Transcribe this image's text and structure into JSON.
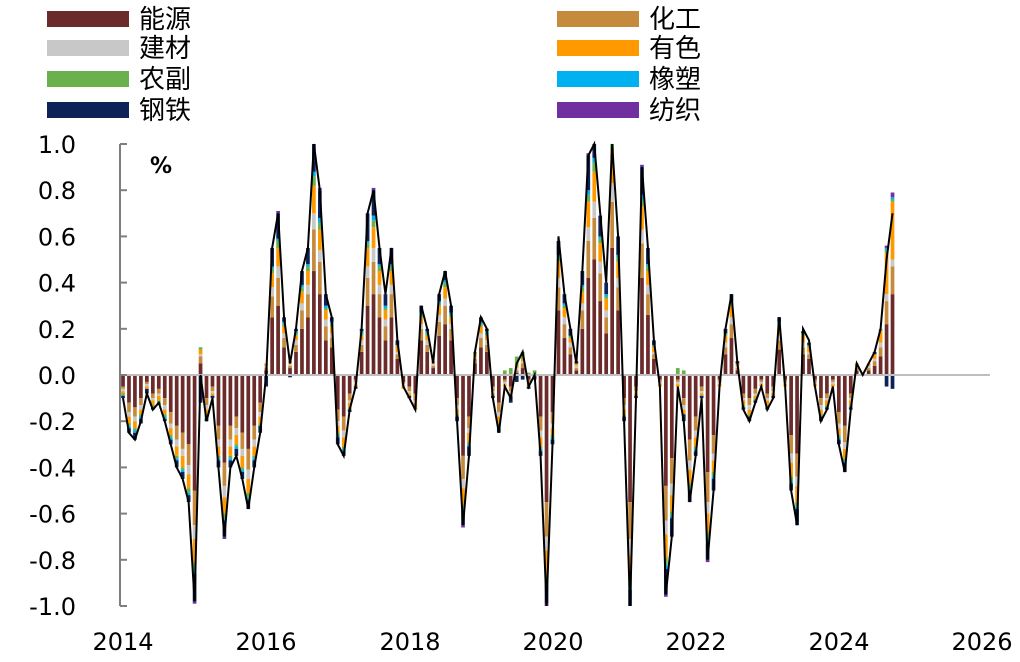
{
  "chart_data": {
    "type": "bar+line",
    "title": "",
    "unit": "%",
    "ylim": [
      -1.0,
      1.0
    ],
    "yticks": [
      "1.0",
      "0.8",
      "0.6",
      "0.4",
      "0.2",
      "0.0",
      "-0.2",
      "-0.4",
      "-0.6",
      "-0.8",
      "-1.0"
    ],
    "xticks": [
      "2014",
      "2016",
      "2018",
      "2020",
      "2022",
      "2024",
      "2026"
    ],
    "x_start": "2014-01",
    "frequency": "monthly",
    "legend": [
      {
        "name": "能源",
        "color": "#6b2b2b"
      },
      {
        "name": "化工",
        "color": "#c68a3c"
      },
      {
        "name": "建材",
        "color": "#c8c8c8"
      },
      {
        "name": "有色",
        "color": "#ff9900"
      },
      {
        "name": "农副",
        "color": "#6ab04c"
      },
      {
        "name": "橡塑",
        "color": "#00b0f0"
      },
      {
        "name": "钢铁",
        "color": "#0d2357"
      },
      {
        "name": "纺织",
        "color": "#7030a0"
      }
    ],
    "line_series": {
      "name": "total",
      "color": "#000000",
      "values": [
        -0.1,
        -0.25,
        -0.28,
        -0.2,
        -0.08,
        -0.15,
        -0.12,
        -0.2,
        -0.3,
        -0.4,
        -0.45,
        -0.55,
        -0.98,
        0.0,
        -0.2,
        -0.1,
        -0.4,
        -0.7,
        -0.4,
        -0.35,
        -0.45,
        -0.58,
        -0.4,
        -0.25,
        0.0,
        0.55,
        0.7,
        0.25,
        0.05,
        0.2,
        0.45,
        0.55,
        1.05,
        0.8,
        0.35,
        0.25,
        -0.3,
        -0.35,
        -0.15,
        -0.05,
        0.2,
        0.7,
        0.8,
        0.55,
        0.35,
        0.55,
        0.15,
        -0.05,
        -0.1,
        -0.15,
        0.3,
        0.2,
        0.05,
        0.35,
        0.45,
        0.3,
        -0.2,
        -0.65,
        -0.35,
        0.1,
        0.25,
        0.2,
        -0.1,
        -0.25,
        -0.05,
        -0.1,
        0.05,
        0.1,
        -0.05,
        0.0,
        -0.35,
        -1.0,
        -0.3,
        0.6,
        0.35,
        0.2,
        0.05,
        0.45,
        0.95,
        1.1,
        0.7,
        0.4,
        1.2,
        0.6,
        -0.2,
        -1.05,
        -0.1,
        0.9,
        0.55,
        0.15,
        -0.05,
        -0.95,
        -0.7,
        -0.05,
        -0.2,
        -0.55,
        -0.35,
        -0.1,
        -0.8,
        -0.5,
        -0.05,
        0.2,
        0.35,
        0.05,
        -0.15,
        -0.2,
        -0.12,
        -0.05,
        -0.15,
        -0.1,
        0.25,
        -0.05,
        -0.5,
        -0.65,
        0.2,
        0.15,
        -0.05,
        -0.2,
        -0.15,
        -0.05,
        -0.3,
        -0.42,
        -0.15,
        0.05,
        0.0,
        0.05,
        0.1,
        0.2,
        0.5,
        0.7
      ]
    },
    "bar_series": {
      "能源": [
        -0.05,
        -0.12,
        -0.14,
        -0.1,
        -0.03,
        -0.08,
        -0.06,
        -0.1,
        -0.16,
        -0.22,
        -0.25,
        -0.3,
        -0.5,
        0.05,
        -0.1,
        -0.05,
        -0.22,
        -0.38,
        -0.22,
        -0.18,
        -0.25,
        -0.32,
        -0.22,
        -0.12,
        0.02,
        0.25,
        0.3,
        0.12,
        0.03,
        0.1,
        0.2,
        0.25,
        0.45,
        0.35,
        0.15,
        0.12,
        -0.15,
        -0.18,
        -0.08,
        -0.02,
        0.1,
        0.3,
        0.35,
        0.25,
        0.15,
        0.25,
        0.07,
        -0.03,
        -0.05,
        -0.08,
        0.15,
        0.1,
        0.03,
        0.17,
        0.22,
        0.15,
        -0.1,
        -0.35,
        -0.18,
        0.05,
        0.12,
        0.1,
        -0.05,
        -0.12,
        -0.02,
        -0.05,
        0.01,
        0.03,
        -0.02,
        0.0,
        -0.18,
        -0.55,
        -0.16,
        0.28,
        0.16,
        0.09,
        0.02,
        0.2,
        0.42,
        0.5,
        0.32,
        0.18,
        0.55,
        0.28,
        -0.1,
        -0.55,
        -0.05,
        0.42,
        0.26,
        0.07,
        -0.02,
        -0.48,
        -0.36,
        -0.02,
        -0.1,
        -0.28,
        -0.18,
        -0.05,
        -0.42,
        -0.26,
        -0.02,
        0.09,
        0.16,
        0.02,
        -0.08,
        -0.1,
        -0.06,
        -0.02,
        -0.08,
        -0.05,
        0.11,
        -0.02,
        -0.26,
        -0.34,
        0.09,
        0.07,
        -0.02,
        -0.1,
        -0.08,
        -0.02,
        -0.16,
        -0.22,
        -0.08,
        0.02,
        0.0,
        0.02,
        0.04,
        0.08,
        0.22,
        0.35
      ],
      "化工": [
        -0.01,
        -0.04,
        -0.04,
        -0.03,
        -0.01,
        -0.02,
        -0.02,
        -0.03,
        -0.05,
        -0.06,
        -0.07,
        -0.09,
        -0.15,
        0.03,
        -0.03,
        -0.02,
        -0.06,
        -0.1,
        -0.06,
        -0.05,
        -0.07,
        -0.09,
        -0.06,
        -0.04,
        0.01,
        0.09,
        0.12,
        0.04,
        0.01,
        0.03,
        0.08,
        0.1,
        0.18,
        0.14,
        0.06,
        0.04,
        -0.05,
        -0.06,
        -0.03,
        -0.01,
        0.03,
        0.12,
        0.14,
        0.1,
        0.06,
        0.1,
        0.02,
        -0.01,
        -0.02,
        -0.03,
        0.05,
        0.03,
        0.01,
        0.06,
        0.08,
        0.05,
        -0.03,
        -0.1,
        -0.05,
        0.02,
        0.04,
        0.03,
        -0.02,
        -0.04,
        -0.01,
        -0.02,
        0.01,
        0.02,
        -0.01,
        0.0,
        -0.06,
        -0.15,
        -0.05,
        0.1,
        0.06,
        0.03,
        0.01,
        0.08,
        0.16,
        0.18,
        0.12,
        0.07,
        0.2,
        0.1,
        -0.03,
        -0.16,
        -0.02,
        0.15,
        0.09,
        0.02,
        -0.01,
        -0.15,
        -0.11,
        -0.01,
        -0.03,
        -0.09,
        -0.06,
        -0.02,
        -0.13,
        -0.08,
        -0.01,
        0.03,
        0.06,
        0.01,
        -0.02,
        -0.03,
        -0.02,
        -0.01,
        -0.02,
        -0.02,
        0.04,
        -0.01,
        -0.08,
        -0.1,
        0.03,
        0.02,
        -0.01,
        -0.03,
        -0.02,
        -0.01,
        -0.05,
        -0.07,
        -0.02,
        0.01,
        0.0,
        0.01,
        0.02,
        0.04,
        0.1,
        0.12
      ],
      "建材": [
        -0.01,
        -0.02,
        -0.02,
        -0.02,
        -0.01,
        -0.01,
        -0.01,
        -0.02,
        -0.02,
        -0.03,
        -0.03,
        -0.04,
        -0.06,
        0.01,
        -0.02,
        -0.01,
        -0.03,
        -0.05,
        -0.03,
        -0.03,
        -0.03,
        -0.04,
        -0.03,
        -0.02,
        0.01,
        0.04,
        0.05,
        0.02,
        0.01,
        0.02,
        0.03,
        0.04,
        0.07,
        0.05,
        0.03,
        0.02,
        -0.02,
        -0.03,
        -0.01,
        -0.01,
        0.02,
        0.05,
        0.06,
        0.04,
        0.03,
        0.04,
        0.01,
        -0.01,
        -0.01,
        -0.01,
        0.02,
        0.02,
        0.01,
        0.03,
        0.03,
        0.02,
        -0.02,
        -0.04,
        -0.02,
        0.01,
        0.02,
        0.02,
        -0.01,
        -0.02,
        -0.01,
        -0.01,
        0.01,
        0.01,
        -0.01,
        0.0,
        -0.03,
        -0.06,
        -0.02,
        0.04,
        0.03,
        0.02,
        0.01,
        0.03,
        0.06,
        0.07,
        0.05,
        0.03,
        0.08,
        0.04,
        -0.02,
        -0.07,
        -0.01,
        0.06,
        0.04,
        0.01,
        -0.01,
        -0.06,
        -0.05,
        -0.01,
        -0.02,
        -0.04,
        -0.03,
        -0.01,
        -0.05,
        -0.03,
        -0.01,
        0.02,
        0.03,
        0.01,
        -0.01,
        -0.02,
        -0.01,
        -0.01,
        -0.01,
        -0.01,
        0.02,
        -0.01,
        -0.04,
        -0.04,
        0.02,
        0.01,
        -0.01,
        -0.02,
        -0.01,
        -0.01,
        -0.02,
        -0.03,
        -0.01,
        0.01,
        0.0,
        0.01,
        0.01,
        0.02,
        0.03,
        0.03
      ],
      "有色": [
        -0.01,
        -0.03,
        -0.03,
        -0.02,
        -0.01,
        -0.02,
        -0.02,
        -0.02,
        -0.03,
        -0.04,
        -0.05,
        -0.06,
        -0.1,
        0.02,
        -0.02,
        -0.01,
        -0.04,
        -0.07,
        -0.04,
        -0.04,
        -0.05,
        -0.06,
        -0.04,
        -0.03,
        0.01,
        0.06,
        0.08,
        0.03,
        0.01,
        0.02,
        0.05,
        0.06,
        0.12,
        0.09,
        0.04,
        0.03,
        -0.03,
        -0.04,
        -0.02,
        -0.01,
        0.02,
        0.08,
        0.09,
        0.06,
        0.04,
        0.06,
        0.02,
        -0.01,
        -0.01,
        -0.02,
        0.03,
        0.02,
        0.01,
        0.04,
        0.05,
        0.03,
        -0.02,
        -0.07,
        -0.04,
        0.01,
        0.03,
        0.02,
        -0.01,
        -0.03,
        -0.01,
        -0.01,
        0.01,
        0.01,
        -0.01,
        0.0,
        -0.04,
        -0.1,
        -0.03,
        0.07,
        0.04,
        0.02,
        0.01,
        0.05,
        0.11,
        0.13,
        0.08,
        0.05,
        0.14,
        0.07,
        -0.02,
        -0.1,
        -0.01,
        0.1,
        0.06,
        0.02,
        -0.01,
        -0.1,
        -0.07,
        -0.01,
        -0.02,
        -0.06,
        -0.04,
        -0.01,
        -0.08,
        -0.05,
        -0.01,
        0.03,
        0.05,
        0.01,
        -0.02,
        -0.02,
        -0.01,
        -0.01,
        -0.02,
        -0.01,
        0.04,
        -0.01,
        -0.06,
        -0.07,
        0.03,
        0.02,
        -0.01,
        -0.02,
        -0.02,
        -0.01,
        -0.03,
        -0.04,
        -0.02,
        0.01,
        0.0,
        0.01,
        0.02,
        0.05,
        0.18,
        0.25
      ],
      "农副": [
        -0.01,
        -0.01,
        -0.01,
        -0.01,
        0.0,
        -0.01,
        -0.01,
        -0.01,
        -0.01,
        -0.01,
        -0.01,
        -0.02,
        -0.03,
        0.01,
        -0.01,
        0.0,
        -0.01,
        -0.02,
        -0.01,
        -0.01,
        -0.01,
        -0.02,
        -0.01,
        -0.01,
        0.0,
        0.02,
        0.03,
        0.01,
        0.0,
        0.01,
        0.02,
        0.02,
        0.04,
        0.03,
        0.01,
        0.01,
        -0.01,
        -0.01,
        -0.01,
        0.0,
        0.01,
        0.02,
        0.03,
        0.02,
        0.01,
        0.02,
        0.01,
        0.0,
        0.0,
        -0.01,
        0.01,
        0.01,
        0.0,
        0.01,
        0.02,
        0.01,
        -0.01,
        -0.02,
        -0.01,
        0.01,
        0.01,
        0.01,
        0.0,
        -0.01,
        0.02,
        0.03,
        0.04,
        0.03,
        0.01,
        0.02,
        -0.01,
        -0.03,
        -0.01,
        0.02,
        0.01,
        0.01,
        0.0,
        0.02,
        0.03,
        0.04,
        0.02,
        0.01,
        0.04,
        0.02,
        -0.01,
        -0.03,
        0.0,
        0.03,
        0.02,
        0.01,
        0.0,
        -0.03,
        -0.02,
        0.03,
        0.02,
        -0.02,
        -0.01,
        0.0,
        -0.03,
        -0.02,
        0.0,
        0.01,
        0.01,
        0.0,
        -0.01,
        -0.01,
        -0.01,
        0.0,
        -0.01,
        0.0,
        0.01,
        0.0,
        -0.02,
        -0.02,
        0.01,
        0.01,
        0.0,
        -0.01,
        -0.01,
        0.0,
        -0.01,
        -0.01,
        -0.01,
        0.0,
        0.0,
        0.0,
        0.0,
        0.01,
        0.01,
        0.01
      ],
      "橡塑": [
        0.0,
        -0.01,
        -0.01,
        -0.01,
        0.0,
        0.0,
        0.0,
        -0.01,
        -0.01,
        -0.01,
        -0.01,
        -0.01,
        -0.02,
        0.0,
        -0.01,
        0.0,
        -0.01,
        -0.01,
        -0.01,
        -0.01,
        -0.01,
        -0.01,
        -0.01,
        0.0,
        0.0,
        0.01,
        0.01,
        0.01,
        0.0,
        0.01,
        0.01,
        0.01,
        0.02,
        0.02,
        0.01,
        0.01,
        -0.01,
        -0.01,
        0.0,
        0.0,
        0.01,
        0.01,
        0.02,
        0.01,
        0.01,
        0.01,
        0.0,
        0.0,
        0.0,
        0.0,
        0.01,
        0.01,
        0.0,
        0.01,
        0.01,
        0.01,
        0.0,
        -0.01,
        -0.01,
        0.0,
        0.01,
        0.01,
        0.0,
        -0.01,
        0.0,
        0.0,
        0.0,
        0.0,
        0.0,
        0.0,
        -0.01,
        -0.02,
        -0.01,
        0.01,
        0.01,
        0.0,
        0.0,
        0.01,
        0.02,
        0.02,
        0.01,
        0.01,
        0.02,
        0.01,
        0.0,
        -0.02,
        0.0,
        0.02,
        0.01,
        0.0,
        0.0,
        -0.02,
        -0.01,
        0.0,
        0.0,
        -0.01,
        -0.01,
        0.0,
        -0.02,
        -0.01,
        0.0,
        0.0,
        0.01,
        0.0,
        0.0,
        0.0,
        0.0,
        0.0,
        0.0,
        0.0,
        0.01,
        0.0,
        -0.01,
        -0.01,
        0.0,
        0.0,
        0.0,
        0.0,
        0.0,
        0.0,
        -0.01,
        -0.01,
        0.0,
        0.0,
        0.0,
        0.0,
        0.0,
        0.0,
        0.01,
        0.01
      ],
      "钢铁": [
        -0.01,
        -0.02,
        -0.03,
        -0.02,
        -0.02,
        -0.01,
        -0.01,
        -0.01,
        -0.02,
        -0.03,
        -0.03,
        -0.03,
        -0.12,
        -0.12,
        -0.01,
        -0.01,
        -0.03,
        -0.07,
        -0.03,
        -0.03,
        -0.03,
        -0.04,
        -0.03,
        -0.03,
        -0.05,
        0.08,
        0.11,
        0.02,
        -0.01,
        0.01,
        0.06,
        0.07,
        0.17,
        0.12,
        0.05,
        0.02,
        -0.03,
        -0.02,
        -0.01,
        -0.01,
        0.01,
        0.12,
        0.11,
        0.07,
        0.05,
        0.07,
        0.02,
        0.0,
        -0.01,
        0.0,
        0.03,
        0.01,
        0.0,
        0.03,
        0.04,
        0.03,
        -0.02,
        -0.06,
        -0.04,
        0.0,
        0.02,
        0.01,
        -0.01,
        -0.02,
        0.0,
        -0.03,
        -0.03,
        -0.02,
        -0.01,
        -0.02,
        -0.02,
        -0.08,
        -0.02,
        0.06,
        0.04,
        0.03,
        0.01,
        0.06,
        0.15,
        0.16,
        0.09,
        0.05,
        0.17,
        0.08,
        -0.02,
        -0.12,
        -0.01,
        0.12,
        0.07,
        0.02,
        0.0,
        -0.11,
        -0.08,
        0.0,
        -0.03,
        -0.05,
        -0.02,
        -0.01,
        -0.07,
        -0.05,
        0.0,
        0.02,
        0.03,
        0.01,
        -0.01,
        -0.02,
        -0.01,
        0.0,
        -0.01,
        -0.01,
        0.02,
        0.0,
        -0.03,
        -0.07,
        0.01,
        0.01,
        0.0,
        -0.02,
        -0.01,
        0.0,
        -0.02,
        -0.04,
        -0.01,
        0.0,
        0.0,
        0.0,
        0.01,
        0.0,
        -0.05,
        -0.06
      ],
      "纺织": [
        0.0,
        0.0,
        0.0,
        0.0,
        0.0,
        0.0,
        0.0,
        0.0,
        0.0,
        0.0,
        0.0,
        0.0,
        -0.01,
        0.0,
        0.0,
        0.0,
        0.0,
        -0.01,
        0.0,
        0.0,
        0.0,
        0.0,
        0.0,
        0.0,
        0.0,
        0.0,
        0.01,
        0.0,
        0.0,
        0.0,
        0.0,
        0.0,
        0.01,
        0.01,
        0.0,
        0.0,
        0.0,
        0.0,
        0.0,
        0.0,
        0.0,
        0.0,
        0.01,
        0.0,
        0.0,
        0.0,
        0.0,
        0.0,
        0.0,
        0.0,
        0.0,
        0.0,
        0.0,
        0.0,
        0.0,
        0.0,
        0.0,
        -0.01,
        0.0,
        0.0,
        0.0,
        0.0,
        0.0,
        0.0,
        0.0,
        0.0,
        0.0,
        0.0,
        0.0,
        0.0,
        0.0,
        -0.01,
        0.0,
        0.0,
        0.0,
        0.0,
        0.0,
        0.0,
        0.01,
        0.01,
        0.0,
        0.0,
        0.01,
        0.0,
        0.0,
        -0.01,
        0.0,
        0.01,
        0.0,
        0.0,
        0.0,
        -0.01,
        0.0,
        0.0,
        0.0,
        0.0,
        0.0,
        0.0,
        -0.01,
        0.0,
        0.0,
        0.0,
        0.0,
        0.0,
        0.0,
        0.0,
        0.0,
        0.0,
        0.0,
        0.0,
        0.0,
        0.0,
        0.0,
        0.0,
        0.0,
        0.0,
        0.0,
        0.0,
        0.0,
        0.0,
        0.0,
        0.0,
        0.0,
        0.0,
        0.0,
        0.0,
        0.0,
        0.0,
        0.01,
        0.02
      ]
    }
  }
}
